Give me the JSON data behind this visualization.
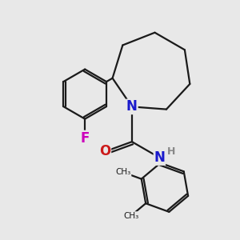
{
  "background_color": "#e8e8e8",
  "bond_color": "#1a1a1a",
  "bond_width": 1.6,
  "atom_colors": {
    "N": "#1a1acc",
    "O": "#cc1a1a",
    "F": "#cc00bb",
    "H": "#888888",
    "C": "#1a1a1a"
  },
  "font_size_atom": 12,
  "font_size_h": 9
}
